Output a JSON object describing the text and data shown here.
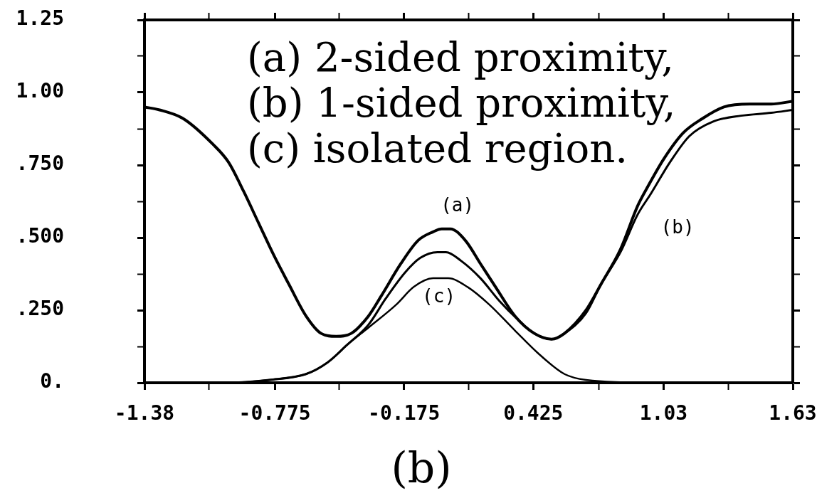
{
  "chart_data": {
    "type": "line",
    "annotations": [
      "(a) 2-sided proximity,",
      "(b) 1-sided proximity,",
      "(c) isolated region.",
      "(b)"
    ],
    "xlim": [
      -1.38,
      1.63
    ],
    "xticks": [
      -1.38,
      {
        "value": -1.08,
        "label": null
      },
      -0.775,
      {
        "value": -0.475,
        "label": null
      },
      -0.175,
      {
        "value": 0.125,
        "label": null
      },
      0.425,
      {
        "value": 0.73,
        "label": null
      },
      1.03,
      {
        "value": 1.33,
        "label": null
      },
      1.63
    ],
    "ylim": [
      0,
      1.25
    ],
    "yticks": [
      {
        "value": 0,
        "label": "0."
      },
      {
        "value": 0.125,
        "label": null
      },
      {
        "value": 0.25,
        "label": ".250"
      },
      {
        "value": 0.375,
        "label": null
      },
      {
        "value": 0.5,
        "label": ".500"
      },
      {
        "value": 0.625,
        "label": null
      },
      {
        "value": 0.75,
        "label": ".750"
      },
      {
        "value": 0.875,
        "label": null
      },
      {
        "value": 1,
        "label": "1.00"
      },
      {
        "value": 1.125,
        "label": null
      },
      {
        "value": 1.25,
        "label": "1.25"
      }
    ],
    "marker": "none",
    "line_style": "solid",
    "series": [
      {
        "name": "(a)",
        "color": "#000000",
        "x": [
          -1.38,
          -1.31,
          -1.2,
          -1.06,
          -0.99,
          -0.92,
          -0.85,
          -0.78,
          -0.71,
          -0.63,
          -0.56,
          -0.49,
          -0.42,
          -0.34,
          -0.28,
          -0.19,
          -0.11,
          -0.04,
          0.0,
          0.04,
          0.11,
          0.18,
          0.25,
          0.34,
          0.43,
          0.51,
          0.57,
          0.67,
          0.74,
          0.83,
          0.91,
          0.96,
          1.03,
          1.12,
          1.21,
          1.31,
          1.43,
          1.53,
          1.63
        ],
        "values": [
          0.95,
          0.94,
          0.91,
          0.82,
          0.76,
          0.66,
          0.55,
          0.44,
          0.34,
          0.23,
          0.17,
          0.16,
          0.17,
          0.23,
          0.3,
          0.41,
          0.49,
          0.52,
          0.53,
          0.53,
          0.49,
          0.41,
          0.33,
          0.23,
          0.17,
          0.15,
          0.17,
          0.25,
          0.34,
          0.46,
          0.61,
          0.68,
          0.77,
          0.86,
          0.91,
          0.95,
          0.96,
          0.96,
          0.97
        ]
      },
      {
        "name": "(b)",
        "color": "#000000",
        "x": [
          -1.38,
          -1.0,
          -0.8,
          -0.63,
          -0.53,
          -0.44,
          -0.34,
          -0.26,
          -0.17,
          -0.1,
          -0.02,
          0.02,
          0.09,
          0.18,
          0.27,
          0.35,
          0.43,
          0.51,
          0.57,
          0.67,
          0.74,
          0.83,
          0.91,
          0.97,
          1.06,
          1.15,
          1.26,
          1.39,
          1.53,
          1.63
        ],
        "values": [
          0.0,
          0.0,
          0.01,
          0.03,
          0.07,
          0.13,
          0.2,
          0.29,
          0.38,
          0.43,
          0.45,
          0.45,
          0.42,
          0.36,
          0.28,
          0.22,
          0.17,
          0.15,
          0.17,
          0.24,
          0.34,
          0.45,
          0.58,
          0.65,
          0.76,
          0.85,
          0.9,
          0.92,
          0.93,
          0.94
        ]
      },
      {
        "name": "(c)",
        "color": "#000000",
        "x": [
          -1.38,
          -1.0,
          -0.8,
          -0.63,
          -0.53,
          -0.44,
          -0.34,
          -0.21,
          -0.13,
          -0.04,
          0.03,
          0.12,
          0.22,
          0.34,
          0.45,
          0.57,
          0.67,
          1.0,
          1.63
        ],
        "values": [
          0.0,
          0.0,
          0.01,
          0.03,
          0.07,
          0.13,
          0.19,
          0.27,
          0.33,
          0.36,
          0.36,
          0.33,
          0.27,
          0.18,
          0.1,
          0.03,
          0.01,
          0.0,
          0.0
        ]
      }
    ]
  }
}
